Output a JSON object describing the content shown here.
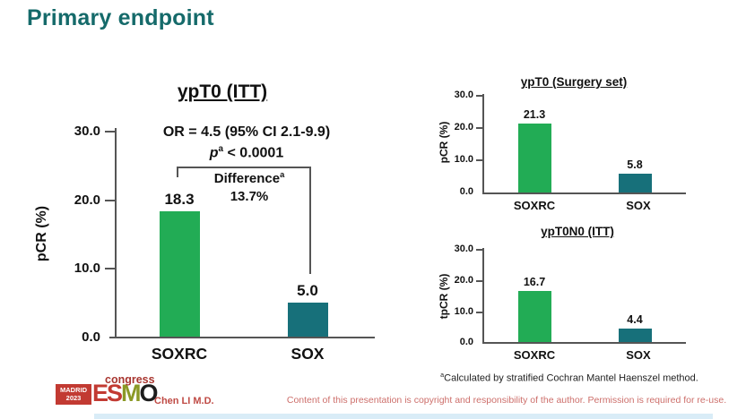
{
  "slide": {
    "title": "Primary endpoint",
    "presenter": "Chen LI M.D.",
    "footnote_sup": "a",
    "footnote_text": "Calculated by stratified Cochran Mantel Haenszel method.",
    "copyright": "Content of this presentation is copyright and responsibility of the author. Permission is required for re-use."
  },
  "logo": {
    "city": "MADRID",
    "year": "2023",
    "e": "E",
    "s": "S",
    "m": "M",
    "o": "O",
    "event": "congress"
  },
  "colors": {
    "title_teal": "#156a6a",
    "bar_green": "#22ac55",
    "bar_teal": "#17707a",
    "accent_red": "#c23a32",
    "copyright_red": "#cd6f6b"
  },
  "chart_data": [
    {
      "type": "bar",
      "title": "ypT0 (ITT)",
      "ylabel": "pCR (%)",
      "categories": [
        "SOXRC",
        "SOX"
      ],
      "values": [
        18.3,
        5.0
      ],
      "value_labels": [
        "18.3",
        "5.0"
      ],
      "yticks": [
        "30.0",
        "20.0",
        "10.0",
        "0.0"
      ],
      "ylim": [
        0,
        30
      ],
      "grid": false,
      "annotations": {
        "or_line": "OR = 4.5 (95% CI 2.1-9.9)",
        "p_prefix": "p",
        "p_sup": "a",
        "p_rest": "< 0.0001",
        "difference_label": "Difference",
        "difference_sup": "a",
        "difference_value": "13.7%"
      }
    },
    {
      "type": "bar",
      "title": "ypT0 (Surgery set)",
      "ylabel": "pCR (%)",
      "categories": [
        "SOXRC",
        "SOX"
      ],
      "values": [
        21.3,
        5.8
      ],
      "value_labels": [
        "21.3",
        "5.8"
      ],
      "yticks": [
        "30.0",
        "20.0",
        "10.0",
        "0.0"
      ],
      "ylim": [
        0,
        30
      ],
      "grid": false
    },
    {
      "type": "bar",
      "title": "ypT0N0 (ITT)",
      "ylabel": "tpCR (%)",
      "categories": [
        "SOXRC",
        "SOX"
      ],
      "values": [
        16.7,
        4.4
      ],
      "value_labels": [
        "16.7",
        "4.4"
      ],
      "yticks": [
        "30.0",
        "20.0",
        "10.0",
        "0.0"
      ],
      "ylim": [
        0,
        30
      ],
      "grid": false
    }
  ]
}
